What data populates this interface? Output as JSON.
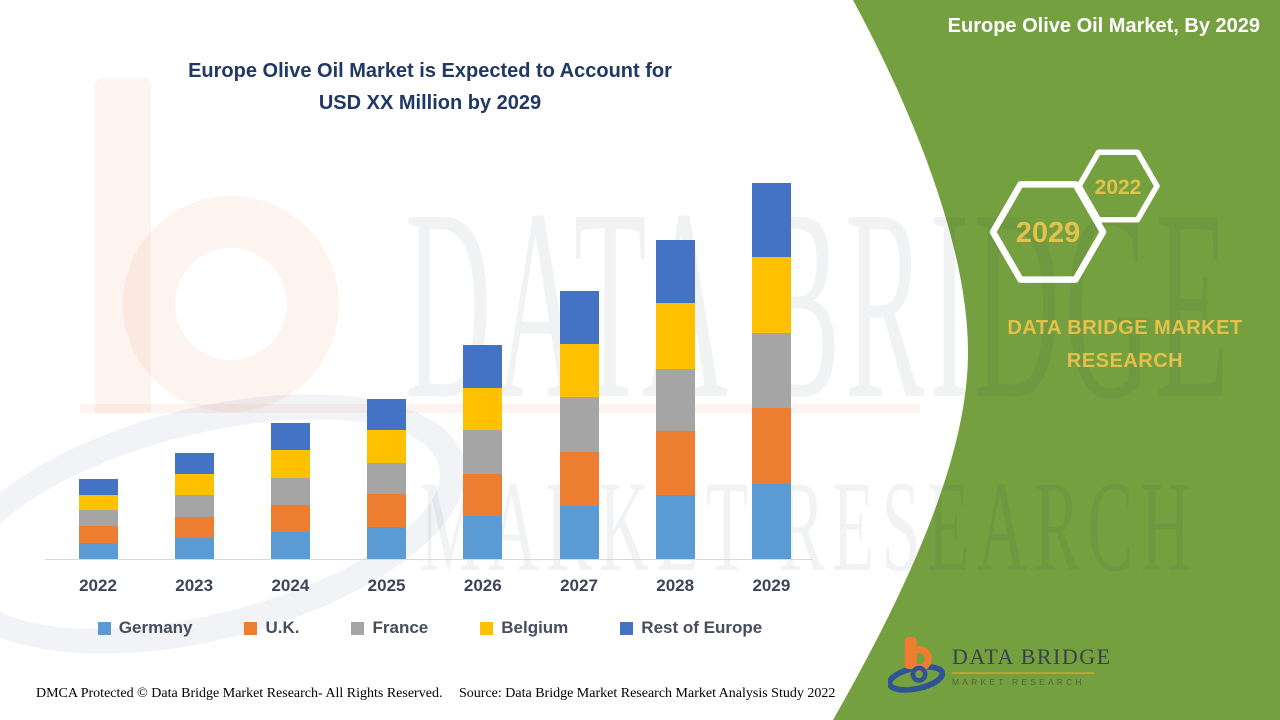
{
  "header": {
    "panel_title": "Europe Olive Oil Market, By 2029"
  },
  "chart": {
    "title_line1": "Europe Olive Oil Market is Expected to Account for",
    "title_line2": "USD XX Million by 2029"
  },
  "chart_data": {
    "type": "bar",
    "stacked": true,
    "title": "Europe Olive Oil Market is Expected to Account for USD XX Million by 2029",
    "categories": [
      "2022",
      "2023",
      "2024",
      "2025",
      "2026",
      "2027",
      "2028",
      "2029"
    ],
    "series": [
      {
        "name": "Germany",
        "color": "#5B9BD5",
        "values": [
          4.3,
          5.6,
          7.2,
          8.5,
          11.4,
          14.0,
          17.0,
          20.0
        ]
      },
      {
        "name": "U.K.",
        "color": "#ED7D31",
        "values": [
          4.4,
          5.6,
          7.2,
          8.7,
          11.3,
          14.4,
          17.0,
          20.2
        ]
      },
      {
        "name": "France",
        "color": "#A5A5A5",
        "values": [
          4.2,
          5.7,
          7.2,
          8.3,
          11.7,
          14.6,
          16.5,
          19.8
        ]
      },
      {
        "name": "Belgium",
        "color": "#FFC000",
        "values": [
          4.2,
          5.8,
          7.3,
          8.7,
          11.1,
          14.3,
          17.5,
          20.2
        ]
      },
      {
        "name": "Rest of Europe",
        "color": "#4472C4",
        "values": [
          4.3,
          5.4,
          7.2,
          8.4,
          11.5,
          14.0,
          16.9,
          19.8
        ]
      }
    ],
    "ylim": [
      0,
      100
    ],
    "grid": false,
    "legend_position": "bottom",
    "xlabel": "",
    "ylabel": ""
  },
  "green_panel": {
    "hexagons": [
      {
        "label": "2029"
      },
      {
        "label": "2022"
      }
    ],
    "brand_text": "DATA BRIDGE MARKET RESEARCH",
    "colors": {
      "panel_green": "#74A03F",
      "gold": "#E4C14C"
    }
  },
  "logo": {
    "name_text": "DATA BRIDGE",
    "sub_text": "MARKET RESEARCH"
  },
  "watermark": {
    "line1": "DATA BRIDGE",
    "line2": "MARKET RESEARCH"
  },
  "footer": {
    "dmca": "DMCA Protected © Data Bridge Market Research- All Rights Reserved.",
    "source": "Source: Data Bridge Market Research Market Analysis Study 2022"
  }
}
